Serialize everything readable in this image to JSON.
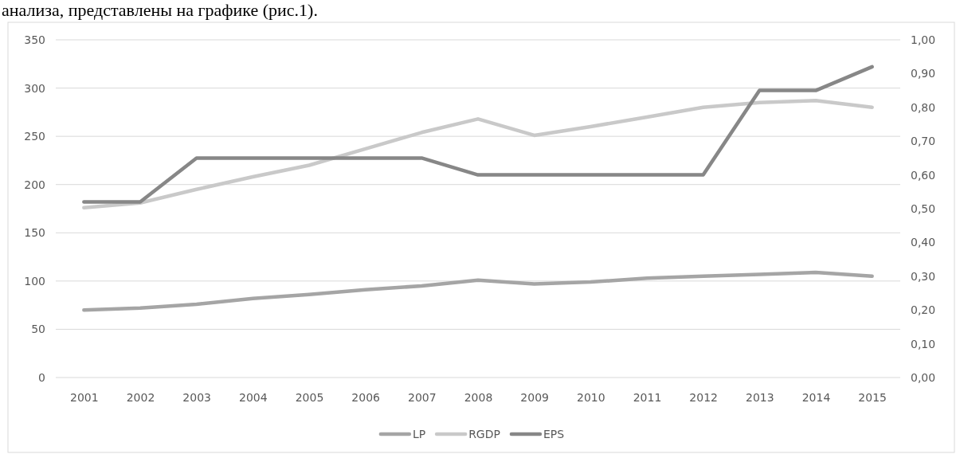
{
  "chart_data": {
    "type": "line",
    "annotations": [
      "анализа, представлены на графике (рис.1)."
    ],
    "categories": [
      "2001",
      "2002",
      "2003",
      "2004",
      "2005",
      "2006",
      "2007",
      "2008",
      "2009",
      "2010",
      "2011",
      "2012",
      "2013",
      "2014",
      "2015"
    ],
    "series": [
      {
        "name": "LP",
        "color": "#a5a5a5",
        "values": [
          70,
          72,
          76,
          82,
          86,
          91,
          95,
          101,
          97,
          99,
          103,
          105,
          107,
          109,
          105
        ]
      },
      {
        "name": "RGDP",
        "color": "#c9c9c9",
        "values": [
          176,
          181,
          195,
          208,
          220,
          237,
          254,
          268,
          251,
          260,
          270,
          280,
          285,
          287,
          280
        ]
      },
      {
        "name": "EPS",
        "color": "#878787",
        "axis": "y2",
        "values": [
          0.52,
          0.52,
          0.65,
          0.65,
          0.65,
          0.65,
          0.65,
          0.6,
          0.6,
          0.6,
          0.6,
          0.6,
          0.85,
          0.85,
          0.92
        ]
      }
    ],
    "ylim": [
      0,
      350
    ],
    "yticks": [
      0,
      50,
      100,
      150,
      200,
      250,
      300,
      350
    ],
    "y2lim": [
      0,
      1
    ],
    "y2ticks": [
      {
        "value": 0,
        "label": "0,00"
      },
      {
        "value": 0.1,
        "label": "0,10"
      },
      {
        "value": 0.2,
        "label": "0,20"
      },
      {
        "value": 0.3,
        "label": "0,30"
      },
      {
        "value": 0.4,
        "label": "0,40"
      },
      {
        "value": 0.5,
        "label": "0,50"
      },
      {
        "value": 0.6,
        "label": "0,60"
      },
      {
        "value": 0.7,
        "label": "0,70"
      },
      {
        "value": 0.8,
        "label": "0,80"
      },
      {
        "value": 0.9,
        "label": "0,90"
      },
      {
        "value": 1,
        "label": "1,00"
      }
    ],
    "grid": "y",
    "legend": "bottom",
    "line_style": "solid"
  }
}
